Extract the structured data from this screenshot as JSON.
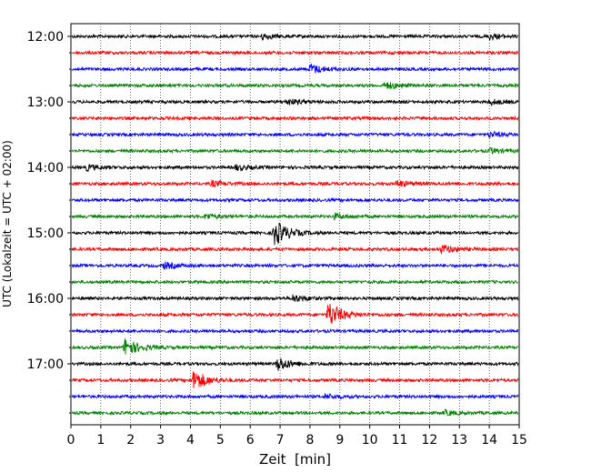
{
  "chart_data": {
    "type": "line",
    "title": "",
    "xlabel": "Zeit  [min]",
    "ylabel": "UTC (Lokalzeit = UTC + 02:00)",
    "xlim": [
      0,
      15
    ],
    "x_ticks": [
      0,
      1,
      2,
      3,
      4,
      5,
      6,
      7,
      8,
      9,
      10,
      11,
      12,
      13,
      14,
      15
    ],
    "grid": "vertical dotted at each minute",
    "colors": [
      "#000000",
      "#ff0000",
      "#0000ff",
      "#008000"
    ],
    "y_tick_labels": [
      "12:00",
      "13:00",
      "14:00",
      "15:00",
      "16:00",
      "17:00"
    ],
    "traces": [
      {
        "start": "12:00",
        "color": "#000000",
        "events": [
          {
            "min": 6.4,
            "amp": 0.3
          },
          {
            "min": 14.0,
            "amp": 0.3
          }
        ]
      },
      {
        "start": "12:15",
        "color": "#ff0000",
        "events": []
      },
      {
        "start": "12:30",
        "color": "#0000ff",
        "events": [
          {
            "min": 8.0,
            "amp": 0.55
          }
        ]
      },
      {
        "start": "12:45",
        "color": "#008000",
        "events": [
          {
            "min": 10.5,
            "amp": 0.4
          }
        ]
      },
      {
        "start": "13:00",
        "color": "#000000",
        "events": [
          {
            "min": 7.2,
            "amp": 0.35
          },
          {
            "min": 14.0,
            "amp": 0.3
          }
        ]
      },
      {
        "start": "13:15",
        "color": "#ff0000",
        "events": []
      },
      {
        "start": "13:30",
        "color": "#0000ff",
        "events": [
          {
            "min": 14.0,
            "amp": 0.3
          }
        ]
      },
      {
        "start": "13:45",
        "color": "#008000",
        "events": [
          {
            "min": 14.0,
            "amp": 0.3
          }
        ]
      },
      {
        "start": "14:00",
        "color": "#000000",
        "events": [
          {
            "min": 0.5,
            "amp": 0.3
          },
          {
            "min": 5.5,
            "amp": 0.3
          }
        ]
      },
      {
        "start": "14:15",
        "color": "#ff0000",
        "events": [
          {
            "min": 4.7,
            "amp": 0.3
          },
          {
            "min": 10.9,
            "amp": 0.35
          }
        ]
      },
      {
        "start": "14:30",
        "color": "#0000ff",
        "events": []
      },
      {
        "start": "14:45",
        "color": "#008000",
        "events": [
          {
            "min": 4.5,
            "amp": 0.3
          },
          {
            "min": 8.8,
            "amp": 0.3
          }
        ]
      },
      {
        "start": "15:00",
        "color": "#000000",
        "events": [
          {
            "min": 6.8,
            "amp": 1.5
          }
        ]
      },
      {
        "start": "15:15",
        "color": "#ff0000",
        "events": [
          {
            "min": 12.4,
            "amp": 0.5
          }
        ]
      },
      {
        "start": "15:30",
        "color": "#0000ff",
        "events": [
          {
            "min": 3.1,
            "amp": 0.35
          }
        ]
      },
      {
        "start": "15:45",
        "color": "#008000",
        "events": []
      },
      {
        "start": "16:00",
        "color": "#000000",
        "events": [
          {
            "min": 7.4,
            "amp": 0.4
          }
        ]
      },
      {
        "start": "16:15",
        "color": "#ff0000",
        "events": [
          {
            "min": 8.6,
            "amp": 1.5
          }
        ]
      },
      {
        "start": "16:30",
        "color": "#0000ff",
        "events": []
      },
      {
        "start": "16:45",
        "color": "#008000",
        "events": [
          {
            "min": 1.8,
            "amp": 1.0
          }
        ]
      },
      {
        "start": "17:00",
        "color": "#000000",
        "events": [
          {
            "min": 6.9,
            "amp": 0.8
          }
        ]
      },
      {
        "start": "17:15",
        "color": "#ff0000",
        "events": [
          {
            "min": 4.1,
            "amp": 1.2
          }
        ]
      },
      {
        "start": "17:30",
        "color": "#0000ff",
        "events": [
          {
            "min": 8.5,
            "amp": 0.25
          }
        ]
      },
      {
        "start": "17:45",
        "color": "#008000",
        "events": [
          {
            "min": 12.5,
            "amp": 0.25
          }
        ]
      }
    ]
  }
}
